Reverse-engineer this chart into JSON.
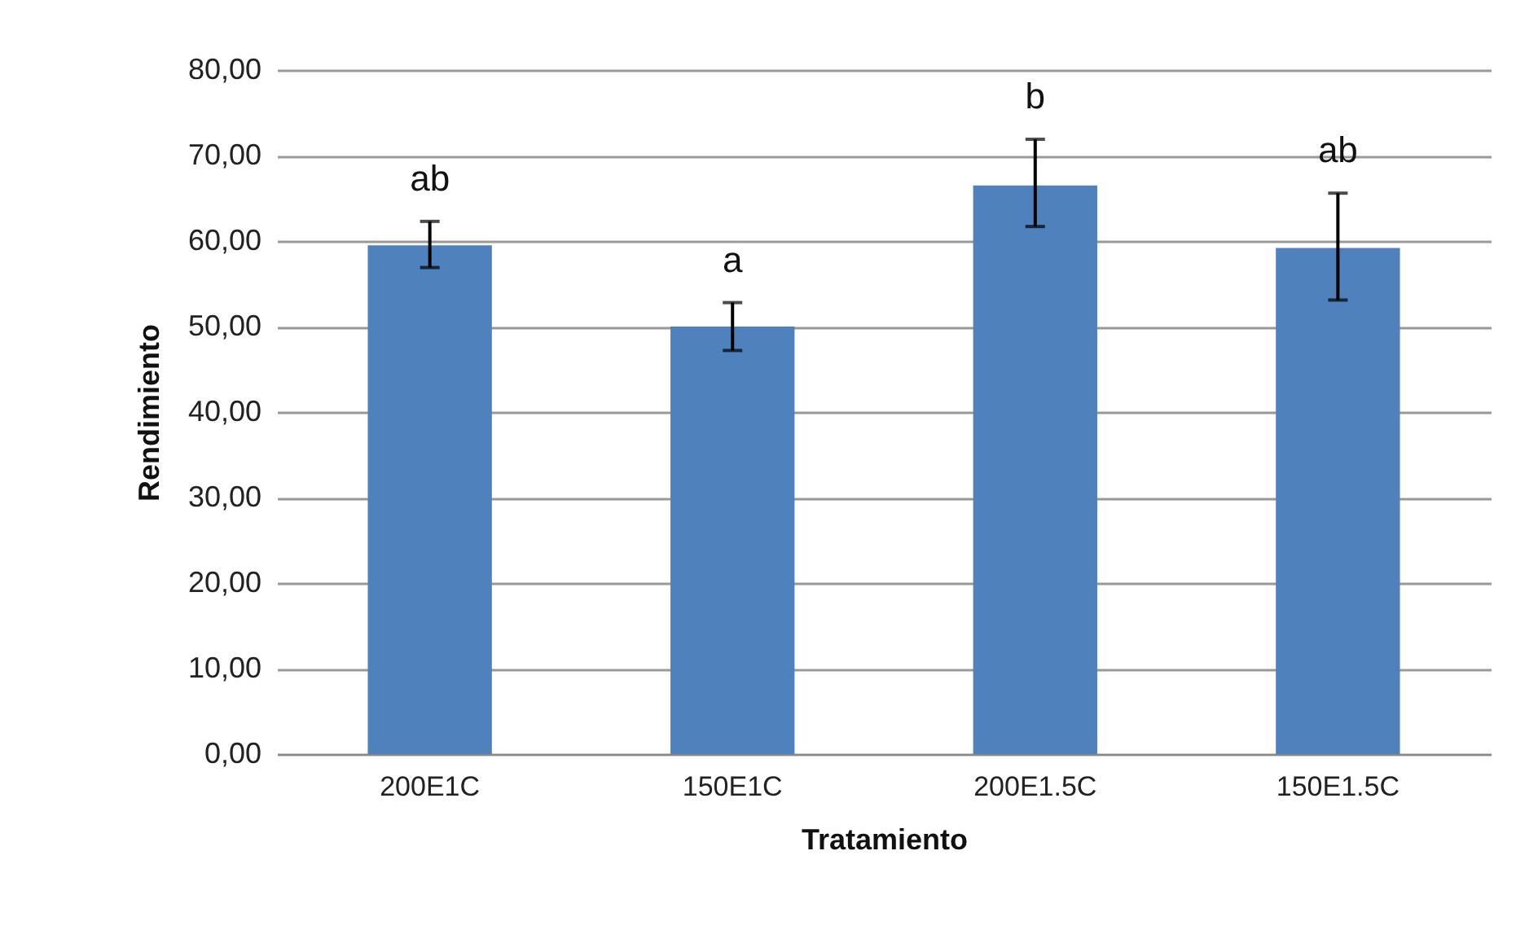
{
  "chart_data": {
    "type": "bar",
    "xlabel": "Tratamiento",
    "ylabel": "Rendimiento",
    "categories": [
      "200E1C",
      "150E1C",
      "200E1.5C",
      "150E1.5C"
    ],
    "series": [
      {
        "color": "#4f81bd",
        "values": [
          59.5,
          50.0,
          66.5,
          59.2
        ],
        "errors": [
          [
            56.9,
            62.3
          ],
          [
            47.2,
            52.8
          ],
          [
            61.7,
            71.9
          ],
          [
            53.1,
            65.6
          ]
        ]
      }
    ],
    "ylim": [
      0,
      80
    ],
    "yticks": [
      {
        "value": 0,
        "label": "0,00"
      },
      {
        "value": 10,
        "label": "10,00"
      },
      {
        "value": 20,
        "label": "20,00"
      },
      {
        "value": 30,
        "label": "30,00"
      },
      {
        "value": 40,
        "label": "40,00"
      },
      {
        "value": 50,
        "label": "50,00"
      },
      {
        "value": 60,
        "label": "60,00"
      },
      {
        "value": 70,
        "label": "70,00"
      },
      {
        "value": 80,
        "label": "80,00"
      }
    ],
    "grid": "y",
    "annotations": [
      "ab",
      "a",
      "b",
      "ab"
    ]
  }
}
